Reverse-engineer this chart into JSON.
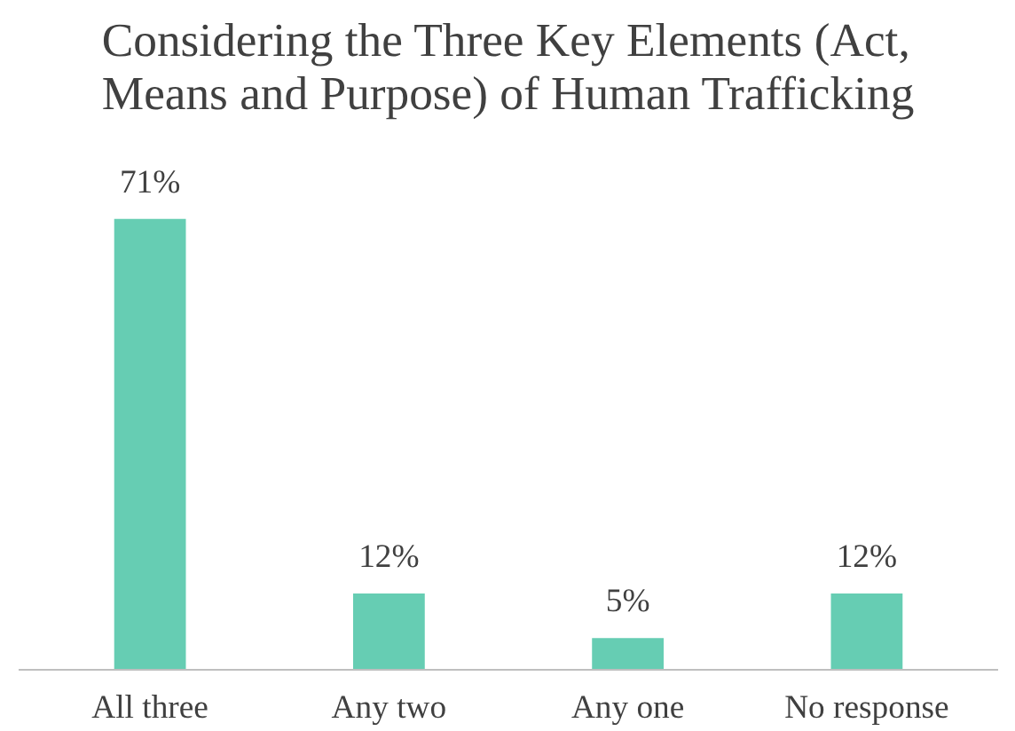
{
  "chart_data": {
    "type": "bar",
    "title": "Considering the Three Key Elements (Act,\nMeans and Purpose) of Human Trafficking",
    "categories": [
      "All three",
      "Any two",
      "Any one",
      "No response"
    ],
    "values": [
      71,
      12,
      5,
      12
    ],
    "value_labels": [
      "71%",
      "12%",
      "5%",
      "12%"
    ],
    "color": "#66cdb3",
    "grid": false
  }
}
